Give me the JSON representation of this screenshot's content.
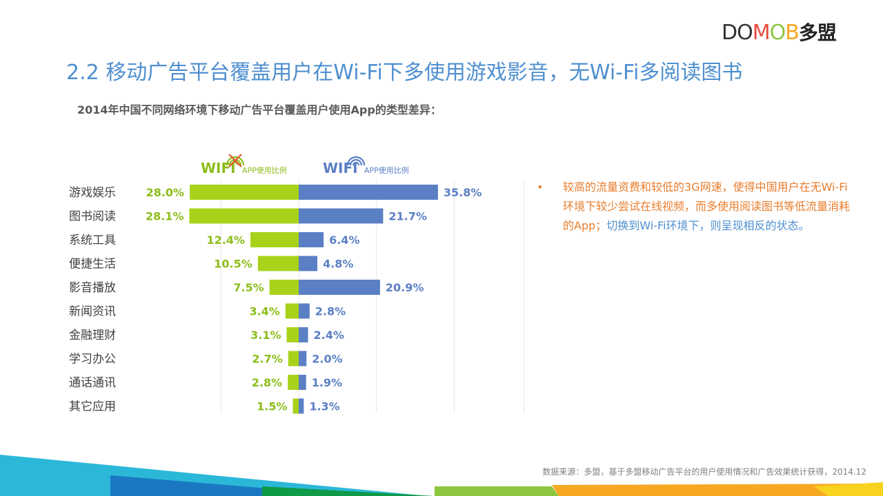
{
  "logo": {
    "letters": [
      {
        "ch": "D",
        "color": "#333333"
      },
      {
        "ch": "O",
        "color": "#333333"
      },
      {
        "ch": "M",
        "color": "#e84c3d"
      },
      {
        "ch": "O",
        "color": "#8cc63f"
      },
      {
        "ch": "B",
        "color": "#f5a623"
      },
      {
        "ch": "多盟",
        "color": "#222222"
      }
    ]
  },
  "title": "2.2 移动广告平台覆盖用户在Wi-Fi下多使用游戏影音，无Wi-Fi多阅读图书",
  "subtitle": "2014年中国不同网络环境下移动广告平台覆盖用户使用App的类型差异：",
  "legend": {
    "left_brand": "WiFi",
    "left_label": "APP使用比例",
    "right_brand": "WiFi",
    "right_label": "APP使用比例"
  },
  "colors": {
    "no_wifi": "#a8d21a",
    "wifi": "#5b7fc4",
    "left_text": "#8cbd1a",
    "right_text": "#5b7fc4",
    "title": "#4e8fd0",
    "cross": "#e8502e"
  },
  "chart_data": {
    "type": "bar",
    "categories": [
      "游戏娱乐",
      "图书阅读",
      "系统工具",
      "便捷生活",
      "影音播放",
      "新闻资讯",
      "金融理财",
      "学习办公",
      "通话通讯",
      "其它应用"
    ],
    "series": [
      {
        "values": [
          28.0,
          28.1,
          12.4,
          10.5,
          7.5,
          3.4,
          3.1,
          2.7,
          2.8,
          1.5
        ]
      },
      {
        "values": [
          35.8,
          21.7,
          6.4,
          4.8,
          20.9,
          2.8,
          2.4,
          2.0,
          1.9,
          1.3
        ]
      }
    ],
    "value_labels_left": [
      "28.0%",
      "28.1%",
      "12.4%",
      "10.5%",
      "7.5%",
      "3.4%",
      "3.1%",
      "2.7%",
      "2.8%",
      "1.5%"
    ],
    "value_labels_right": [
      "35.8%",
      "21.7%",
      "6.4%",
      "4.8%",
      "20.9%",
      "2.8%",
      "2.4%",
      "2.0%",
      "1.9%",
      "1.3%"
    ],
    "grid": true
  },
  "bullet": {
    "marker": "•",
    "part1": "较高的流量资费和较低的3G网速，使得中国用户在无Wi-Fi环境下较少尝试在线视频，而多使用阅读图书等低流量消耗的App；",
    "part2": "切换到Wi-Fi环境下，则呈现相反的状态。"
  },
  "source": "数据来源：多盟，基于多盟移动广告平台的用户使用情况和广告效果统计获得，2014.12"
}
